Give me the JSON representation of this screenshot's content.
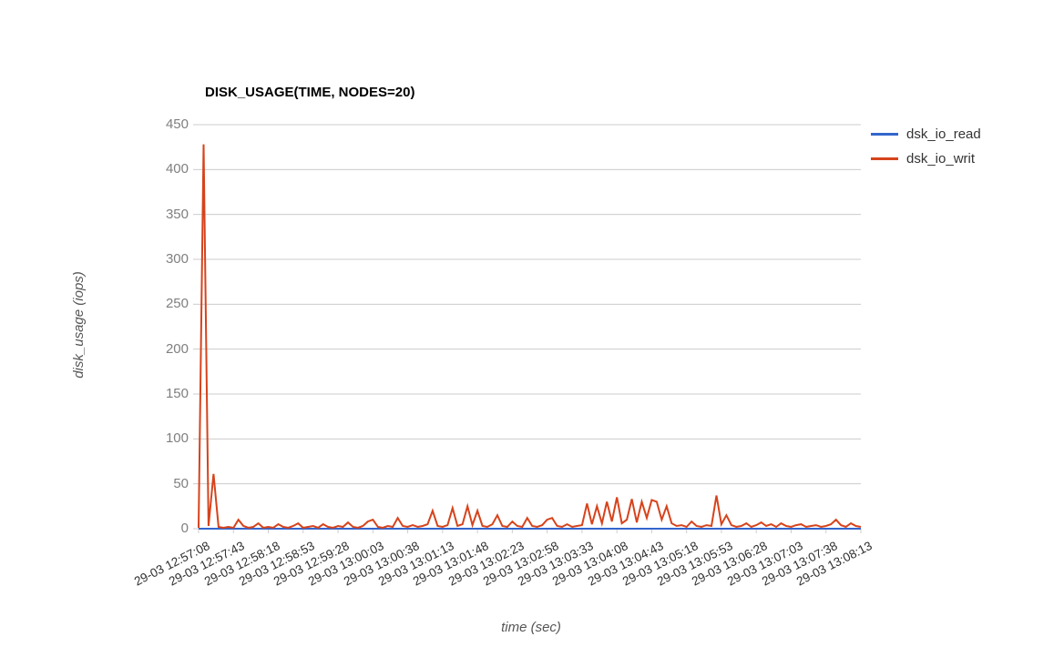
{
  "window": {
    "background": "#ffffff"
  },
  "colors": {
    "grid": "#cccccc",
    "tick_stub": "#cccccc",
    "y_tick_text": "#7f7f7f",
    "x_tick_text": "#2e2e2e",
    "title_text": "#000000",
    "axis_title_text": "#555555",
    "series_read": "#3366cc",
    "series_writ": "#d6431c"
  },
  "chart_data": {
    "type": "line",
    "title": "DISK_USAGE(TIME, NODES=20)",
    "xlabel": "time (sec)",
    "ylabel": "disk_usage (iops)",
    "ylim": [
      0,
      450
    ],
    "yticks": [
      0,
      50,
      100,
      150,
      200,
      250,
      300,
      350,
      400,
      450
    ],
    "grid": true,
    "legend_position": "top-right",
    "x_start": "29-03 12:57:08",
    "x_interval_sec": 5,
    "x_tick_labels": [
      "29-03 12:57:08",
      "29-03 12:57:43",
      "29-03 12:58:18",
      "29-03 12:58:53",
      "29-03 12:59:28",
      "29-03 13:00:03",
      "29-03 13:00:38",
      "29-03 13:01:13",
      "29-03 13:01:48",
      "29-03 13:02:23",
      "29-03 13:02:58",
      "29-03 13:03:33",
      "29-03 13:04:08",
      "29-03 13:04:43",
      "29-03 13:05:18",
      "29-03 13:05:53",
      "29-03 13:06:28",
      "29-03 13:07:03",
      "29-03 13:07:38",
      "29-03 13:08:13"
    ],
    "series": [
      {
        "name": "dsk_io_read",
        "color": "#3366cc",
        "values": [
          0,
          0,
          0,
          0,
          0,
          0,
          0,
          0,
          0,
          0,
          0,
          0,
          0,
          0,
          0,
          0,
          0,
          0,
          0,
          0,
          0,
          0,
          0,
          0,
          0,
          0,
          0,
          0,
          0,
          0,
          0,
          0,
          0,
          0,
          0,
          0,
          0,
          0,
          0,
          0,
          0,
          0,
          0,
          0,
          0,
          0,
          0,
          0,
          0,
          0,
          0,
          0,
          0,
          0,
          0,
          0,
          0,
          0,
          0,
          0,
          0,
          0,
          0,
          0,
          0,
          0,
          0,
          0,
          0,
          0,
          0,
          0,
          0,
          0,
          0,
          0,
          0,
          0,
          0,
          0,
          0,
          0,
          0,
          0,
          0,
          0,
          0,
          0,
          0,
          0,
          0,
          0,
          0,
          0,
          0,
          0,
          0,
          0,
          0,
          0,
          0,
          0,
          0,
          0,
          0,
          0,
          0,
          0,
          0,
          0,
          0,
          0,
          0,
          0,
          0,
          0,
          0,
          0,
          0,
          0,
          0,
          0,
          0,
          0,
          0,
          0,
          0,
          0,
          0,
          0,
          0,
          0,
          0,
          0
        ]
      },
      {
        "name": "dsk_io_writ",
        "color": "#d6431c",
        "values": [
          1,
          428,
          3,
          61,
          2,
          1,
          2,
          1,
          10,
          3,
          1,
          2,
          6,
          1,
          2,
          1,
          5,
          2,
          1,
          3,
          6,
          1,
          2,
          3,
          1,
          5,
          2,
          1,
          3,
          2,
          7,
          2,
          1,
          3,
          8,
          10,
          2,
          1,
          3,
          2,
          12,
          3,
          2,
          4,
          2,
          3,
          5,
          20,
          3,
          2,
          4,
          23,
          3,
          5,
          25,
          4,
          20,
          3,
          2,
          5,
          15,
          3,
          2,
          8,
          3,
          2,
          12,
          3,
          2,
          4,
          10,
          12,
          3,
          2,
          5,
          2,
          3,
          4,
          28,
          5,
          25,
          6,
          30,
          8,
          35,
          6,
          10,
          33,
          7,
          30,
          12,
          32,
          30,
          10,
          25,
          6,
          3,
          4,
          2,
          8,
          3,
          2,
          4,
          3,
          37,
          5,
          15,
          4,
          2,
          3,
          6,
          2,
          4,
          7,
          3,
          5,
          2,
          6,
          3,
          2,
          4,
          5,
          2,
          3,
          4,
          2,
          3,
          5,
          10,
          4,
          2,
          6,
          3,
          2
        ]
      }
    ]
  },
  "legend": {
    "items": [
      {
        "label": "dsk_io_read",
        "color": "#3366cc"
      },
      {
        "label": "dsk_io_writ",
        "color": "#d6431c"
      }
    ]
  }
}
